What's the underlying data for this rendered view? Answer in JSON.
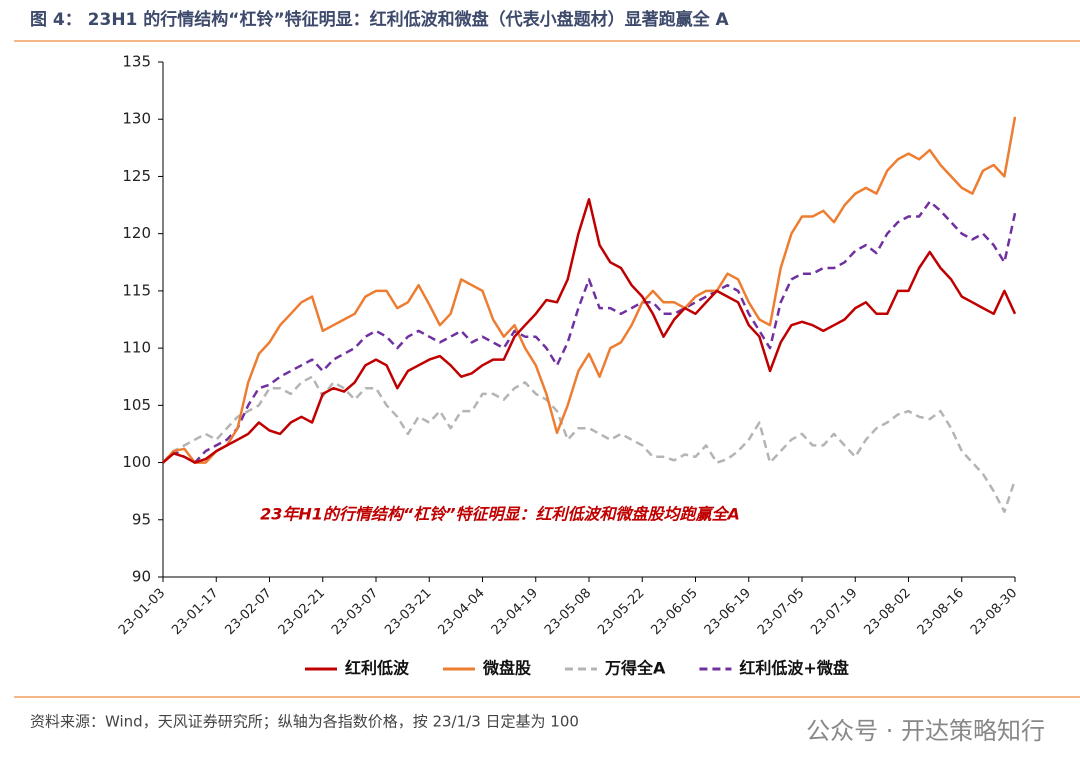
{
  "header": {
    "title": "图 4：  23H1 的行情结构“杠铃”特征明显：红利低波和微盘（代表小盘题材）显著跑赢全 A"
  },
  "footer": {
    "source": "资料来源：Wind，天风证券研究所；纵轴为各指数价格，按 23/1/3 日定基为 100",
    "watermark": "公众号 · 开达策略知行"
  },
  "chart_data": {
    "type": "line",
    "annotation": "23年H1的行情结构“杠铃”特征明显：红利低波和微盘股均跑赢全A",
    "categories": [
      "23-01-03",
      null,
      null,
      null,
      null,
      "23-01-17",
      null,
      null,
      null,
      null,
      "23-02-07",
      null,
      null,
      null,
      null,
      "23-02-21",
      null,
      null,
      null,
      null,
      "23-03-07",
      null,
      null,
      null,
      null,
      "23-03-21",
      null,
      null,
      null,
      null,
      "23-04-04",
      null,
      null,
      null,
      null,
      "23-04-19",
      null,
      null,
      null,
      null,
      "23-05-08",
      null,
      null,
      null,
      null,
      "23-05-22",
      null,
      null,
      null,
      null,
      "23-06-05",
      null,
      null,
      null,
      null,
      "23-06-19",
      null,
      null,
      null,
      null,
      "23-07-05",
      null,
      null,
      null,
      null,
      "23-07-19",
      null,
      null,
      null,
      null,
      "23-08-02",
      null,
      null,
      null,
      null,
      "23-08-16",
      null,
      null,
      null,
      null,
      "23-08-30"
    ],
    "ylim": [
      90,
      135
    ],
    "yticks": [
      90,
      95,
      100,
      105,
      110,
      115,
      120,
      125,
      130,
      135
    ],
    "legend": "bottom",
    "series": [
      {
        "name": "红利低波",
        "color": "#c00000",
        "dash": false,
        "values": [
          100,
          100.8,
          100.5,
          100,
          100.3,
          101,
          101.5,
          102,
          102.5,
          103.5,
          102.8,
          102.5,
          103.5,
          104,
          103.5,
          106,
          106.5,
          106.2,
          107,
          108.5,
          109,
          108.5,
          106.5,
          108,
          108.5,
          109,
          109.3,
          108.5,
          107.5,
          107.8,
          108.5,
          109,
          109,
          111,
          112,
          113,
          114.2,
          114,
          116,
          120,
          123,
          119,
          117.5,
          117,
          115.5,
          114.5,
          113,
          111,
          112.5,
          113.5,
          113,
          114,
          115,
          114.5,
          114,
          112,
          111,
          108,
          110.5,
          112,
          112.3,
          112,
          111.5,
          112,
          112.5,
          113.5,
          114,
          113,
          113,
          115,
          115,
          117,
          118.4,
          117,
          116,
          114.5,
          114,
          113.5,
          113,
          115,
          113
        ]
      },
      {
        "name": "微盘股",
        "color": "#ed7d31",
        "dash": false,
        "values": [
          100,
          101,
          101.2,
          100,
          100,
          101,
          101.5,
          103,
          107,
          109.5,
          110.5,
          112,
          113,
          114,
          114.5,
          111.5,
          112,
          112.5,
          113,
          114.5,
          115,
          115,
          113.5,
          114,
          115.5,
          113.8,
          112,
          113,
          116,
          115.5,
          115,
          112.5,
          111,
          112,
          110,
          108.5,
          106,
          102.6,
          105,
          108,
          109.5,
          107.5,
          110,
          110.5,
          112,
          114,
          115,
          114,
          114,
          113.5,
          114.5,
          115,
          115,
          116.5,
          116,
          114,
          112.5,
          112,
          117,
          120,
          121.5,
          121.5,
          122,
          121,
          122.5,
          123.5,
          124,
          123.5,
          125.5,
          126.5,
          127,
          126.5,
          127.3,
          126,
          125,
          124,
          123.5,
          125.5,
          126,
          125,
          130.2
        ]
      },
      {
        "name": "万得全A",
        "color": "#b4b4b4",
        "dash": true,
        "values": [
          100,
          101,
          101.5,
          102,
          102.5,
          102,
          103,
          104,
          104.5,
          105,
          106.5,
          106.5,
          106,
          107,
          107.5,
          105.8,
          107,
          106.5,
          105.5,
          106.5,
          106.5,
          105,
          104,
          102.5,
          104,
          103.5,
          104.5,
          103,
          104.5,
          104.5,
          106,
          106,
          105.5,
          106.5,
          107,
          106,
          105.5,
          104.5,
          102,
          103,
          103,
          102.5,
          102,
          102.5,
          102,
          101.5,
          100.5,
          100.5,
          100.2,
          100.7,
          100.5,
          101.5,
          100,
          100.3,
          101,
          102,
          103.5,
          100,
          101,
          102,
          102.5,
          101.5,
          101.5,
          102.5,
          101.5,
          100.5,
          102,
          103,
          103.5,
          104.2,
          104.5,
          104,
          103.8,
          104.5,
          103,
          101,
          100,
          99,
          97.5,
          95.7,
          98.5
        ]
      },
      {
        "name": "红利低波+微盘",
        "color": "#7030a0",
        "dash": true,
        "values": [
          100,
          101,
          100.5,
          100,
          101,
          101.5,
          102,
          103,
          105,
          106.5,
          106.8,
          107.5,
          108,
          108.5,
          109,
          108,
          109,
          109.5,
          110,
          111,
          111.5,
          111,
          110,
          111,
          111.5,
          111,
          110.5,
          111,
          111.5,
          110.5,
          111,
          110.5,
          110,
          111.5,
          111,
          111,
          110,
          108.5,
          110.5,
          113.5,
          116,
          113.5,
          113.5,
          113,
          113.5,
          114,
          114,
          113,
          113,
          113.5,
          114,
          114.5,
          115,
          115.5,
          115,
          113,
          111.5,
          110,
          114,
          116,
          116.5,
          116.5,
          117,
          117,
          117.5,
          118.5,
          119,
          118.3,
          120,
          121,
          121.5,
          121.5,
          122.8,
          122,
          121,
          120,
          119.5,
          120,
          119,
          117.5,
          121.8
        ]
      }
    ]
  }
}
